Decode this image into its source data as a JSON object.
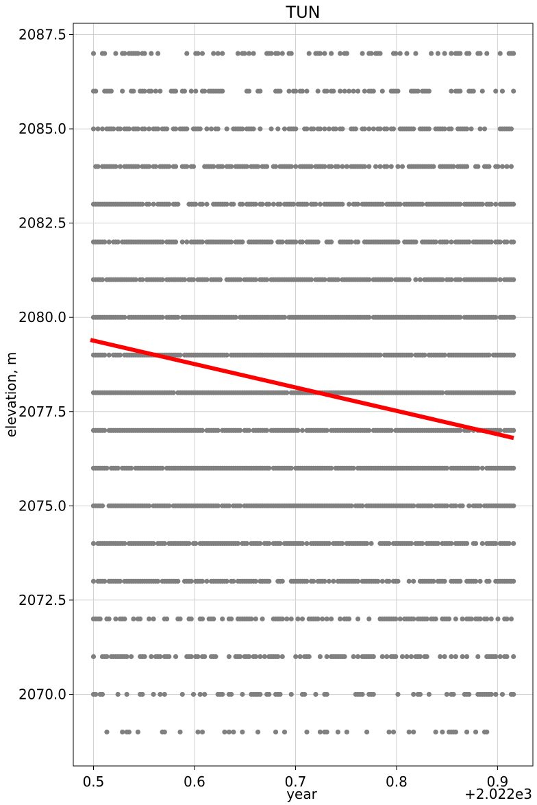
{
  "chart_data": {
    "type": "scatter",
    "title": "TUN",
    "xlabel": "year",
    "ylabel": "elevation, m",
    "x_offset_label": "+2.022e3",
    "xlim": [
      0.48,
      0.935
    ],
    "ylim": [
      2068.1,
      2087.8
    ],
    "x_ticks": [
      0.5,
      0.6,
      0.7,
      0.8,
      0.9
    ],
    "x_tick_labels": [
      "0.5",
      "0.6",
      "0.7",
      "0.8",
      "0.9"
    ],
    "y_ticks": [
      2070.0,
      2072.5,
      2075.0,
      2077.5,
      2080.0,
      2082.5,
      2085.0,
      2087.5
    ],
    "y_tick_labels": [
      "2070.0",
      "2072.5",
      "2075.0",
      "2077.5",
      "2080.0",
      "2082.5",
      "2085.0",
      "2087.5"
    ],
    "grid": true,
    "point_color": "#808080",
    "trend_color": "#ff0000",
    "series": [
      {
        "kind": "points",
        "x_range": [
          0.5,
          0.916
        ],
        "y_levels": [
          2069,
          2070,
          2071,
          2072,
          2073,
          2074,
          2075,
          2076,
          2077,
          2078,
          2079,
          2080,
          2081,
          2082,
          2083,
          2084,
          2085,
          2086,
          2087
        ],
        "density": [
          0.25,
          0.35,
          0.5,
          0.55,
          0.75,
          0.85,
          0.92,
          0.92,
          0.94,
          0.95,
          0.95,
          0.96,
          0.92,
          0.85,
          0.85,
          0.7,
          0.55,
          0.45,
          0.35
        ]
      },
      {
        "kind": "trend",
        "x": [
          0.497,
          0.916
        ],
        "y": [
          2079.4,
          2076.8
        ]
      }
    ]
  }
}
